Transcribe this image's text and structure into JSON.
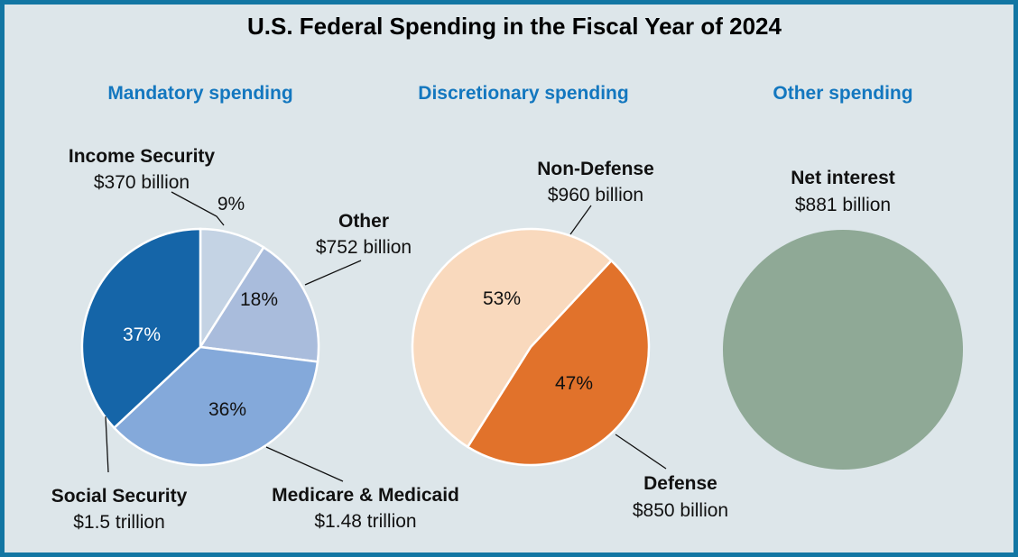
{
  "chart_data": [
    {
      "type": "pie",
      "title": "U.S. Federal Spending in the Fiscal Year of 2024",
      "subtitle": "Mandatory spending",
      "slices": [
        {
          "name": "Income Security",
          "amount": "$370 billion",
          "percent": 9,
          "color": "#c4d3e4",
          "pct_color": "#111111"
        },
        {
          "name": "Other",
          "amount": "$752 billion",
          "percent": 18,
          "color": "#a9bcdc",
          "pct_color": "#111111"
        },
        {
          "name": "Medicare & Medicaid",
          "amount": "$1.48 trillion",
          "percent": 36,
          "color": "#84a9da",
          "pct_color": "#111111"
        },
        {
          "name": "Social Security",
          "amount": "$1.5 trillion",
          "percent": 37,
          "color": "#1565a8",
          "pct_color": "#ffffff"
        }
      ]
    },
    {
      "type": "pie",
      "subtitle": "Discretionary spending",
      "slices": [
        {
          "name": "Defense",
          "amount": "$850 billion",
          "percent": 47,
          "color": "#e1722b",
          "pct_color": "#111111"
        },
        {
          "name": "Non-Defense",
          "amount": "$960 billion",
          "percent": 53,
          "color": "#f9d9bd",
          "pct_color": "#111111"
        }
      ]
    },
    {
      "type": "pie",
      "subtitle": "Other spending",
      "slices": [
        {
          "name": "Net interest",
          "amount": "$881 billion",
          "percent": 100,
          "color": "#8fa996"
        }
      ]
    }
  ]
}
